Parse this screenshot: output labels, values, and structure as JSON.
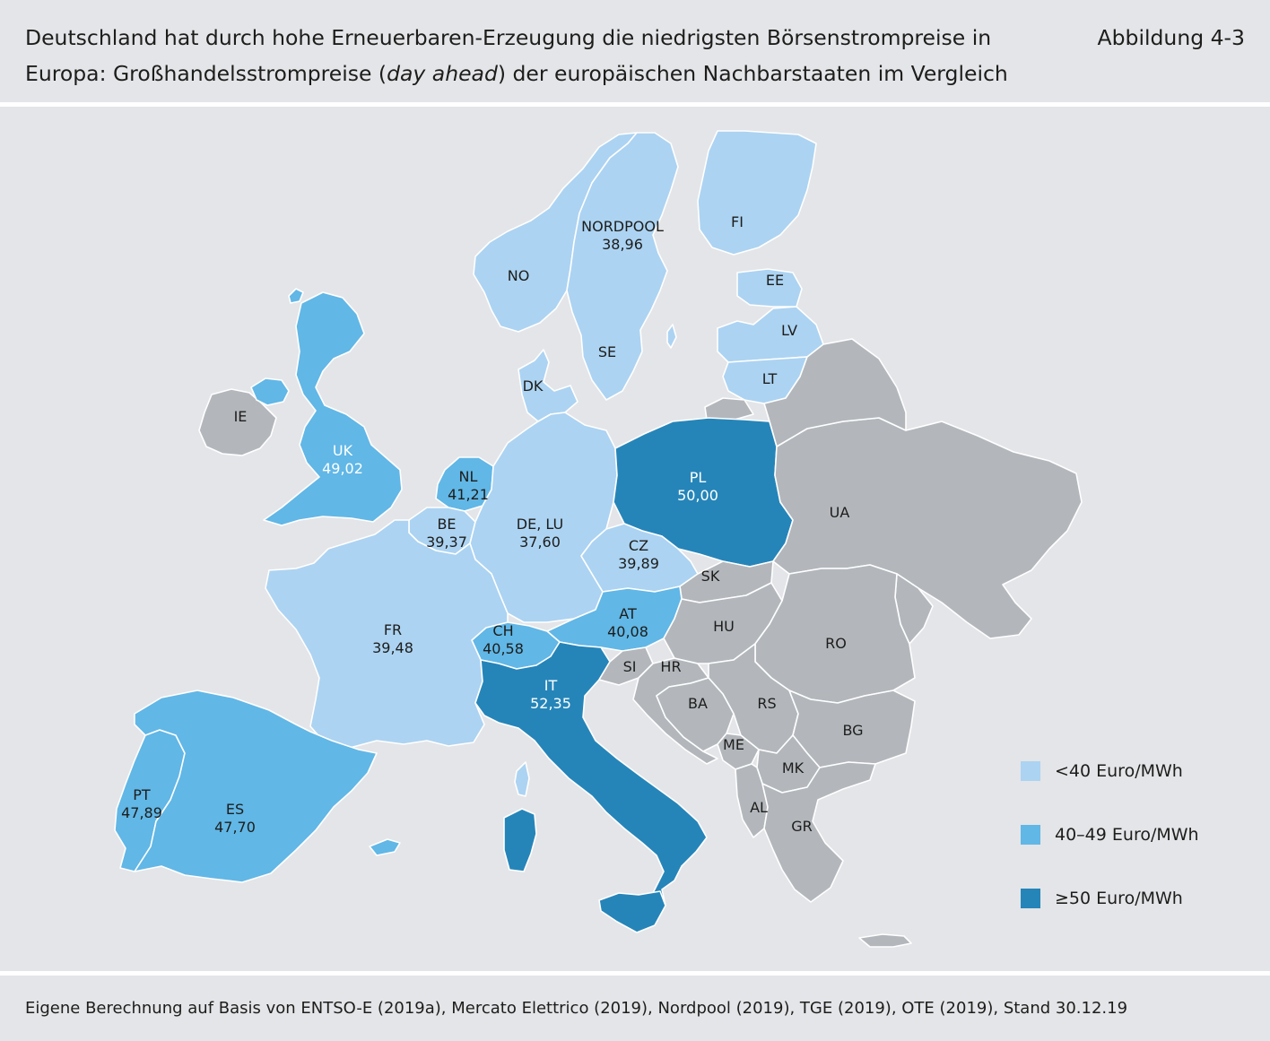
{
  "header": {
    "title_line1": "Deutschland hat durch hohe Erneuerbaren-Erzeugung die niedrigsten Börsenstrompreise in",
    "title_line2_before": "Europa: Großhandelsstrompreise (",
    "title_line2_italic": "day ahead",
    "title_line2_after": ") der europäischen Nachbarstaaten im Vergleich",
    "figure_label": "Abbildung 4-3"
  },
  "colors": {
    "light": "#acd3f2",
    "mid": "#61b7e6",
    "dark": "#2585b9",
    "none": "#b3b7bc",
    "label_light": "#1d1d1b",
    "label_dark": "#ffffff"
  },
  "legend": [
    {
      "label": "<40 Euro/MWh",
      "color": "#acd3f2"
    },
    {
      "label": "40–49 Euro/MWh",
      "color": "#61b7e6"
    },
    {
      "label": "≥50 Euro/MWh",
      "color": "#2585b9"
    }
  ],
  "regions": [
    {
      "code": "NORDPOOL",
      "price": "38,96",
      "class": "light"
    },
    {
      "code": "NO",
      "price": "",
      "class": "light"
    },
    {
      "code": "SE",
      "price": "",
      "class": "light"
    },
    {
      "code": "FI",
      "price": "",
      "class": "light"
    },
    {
      "code": "EE",
      "price": "",
      "class": "light"
    },
    {
      "code": "LV",
      "price": "",
      "class": "light"
    },
    {
      "code": "LT",
      "price": "",
      "class": "light"
    },
    {
      "code": "DK",
      "price": "",
      "class": "light"
    },
    {
      "code": "IE",
      "price": "",
      "class": "none"
    },
    {
      "code": "UK",
      "price": "49,02",
      "class": "mid"
    },
    {
      "code": "NL",
      "price": "41,21",
      "class": "mid"
    },
    {
      "code": "BE",
      "price": "39,37",
      "class": "light"
    },
    {
      "code": "DE, LU",
      "price": "37,60",
      "class": "light"
    },
    {
      "code": "PL",
      "price": "50,00",
      "class": "dark"
    },
    {
      "code": "UA",
      "price": "",
      "class": "none"
    },
    {
      "code": "CZ",
      "price": "39,89",
      "class": "light"
    },
    {
      "code": "SK",
      "price": "",
      "class": "none"
    },
    {
      "code": "AT",
      "price": "40,08",
      "class": "mid"
    },
    {
      "code": "HU",
      "price": "",
      "class": "none"
    },
    {
      "code": "RO",
      "price": "",
      "class": "none"
    },
    {
      "code": "FR",
      "price": "39,48",
      "class": "light"
    },
    {
      "code": "CH",
      "price": "40,58",
      "class": "mid"
    },
    {
      "code": "SI",
      "price": "",
      "class": "none"
    },
    {
      "code": "HR",
      "price": "",
      "class": "none"
    },
    {
      "code": "IT",
      "price": "52,35",
      "class": "dark"
    },
    {
      "code": "BA",
      "price": "",
      "class": "none"
    },
    {
      "code": "RS",
      "price": "",
      "class": "none"
    },
    {
      "code": "BG",
      "price": "",
      "class": "none"
    },
    {
      "code": "ME",
      "price": "",
      "class": "none"
    },
    {
      "code": "MK",
      "price": "",
      "class": "none"
    },
    {
      "code": "AL",
      "price": "",
      "class": "none"
    },
    {
      "code": "GR",
      "price": "",
      "class": "none"
    },
    {
      "code": "PT",
      "price": "47,89",
      "class": "mid"
    },
    {
      "code": "ES",
      "price": "47,70",
      "class": "mid"
    }
  ],
  "source": "Eigene Berechnung auf Basis von ENTSO-E (2019a), Mercato Elettrico (2019), Nordpool (2019), TGE (2019), OTE (2019), Stand 30.12.19"
}
